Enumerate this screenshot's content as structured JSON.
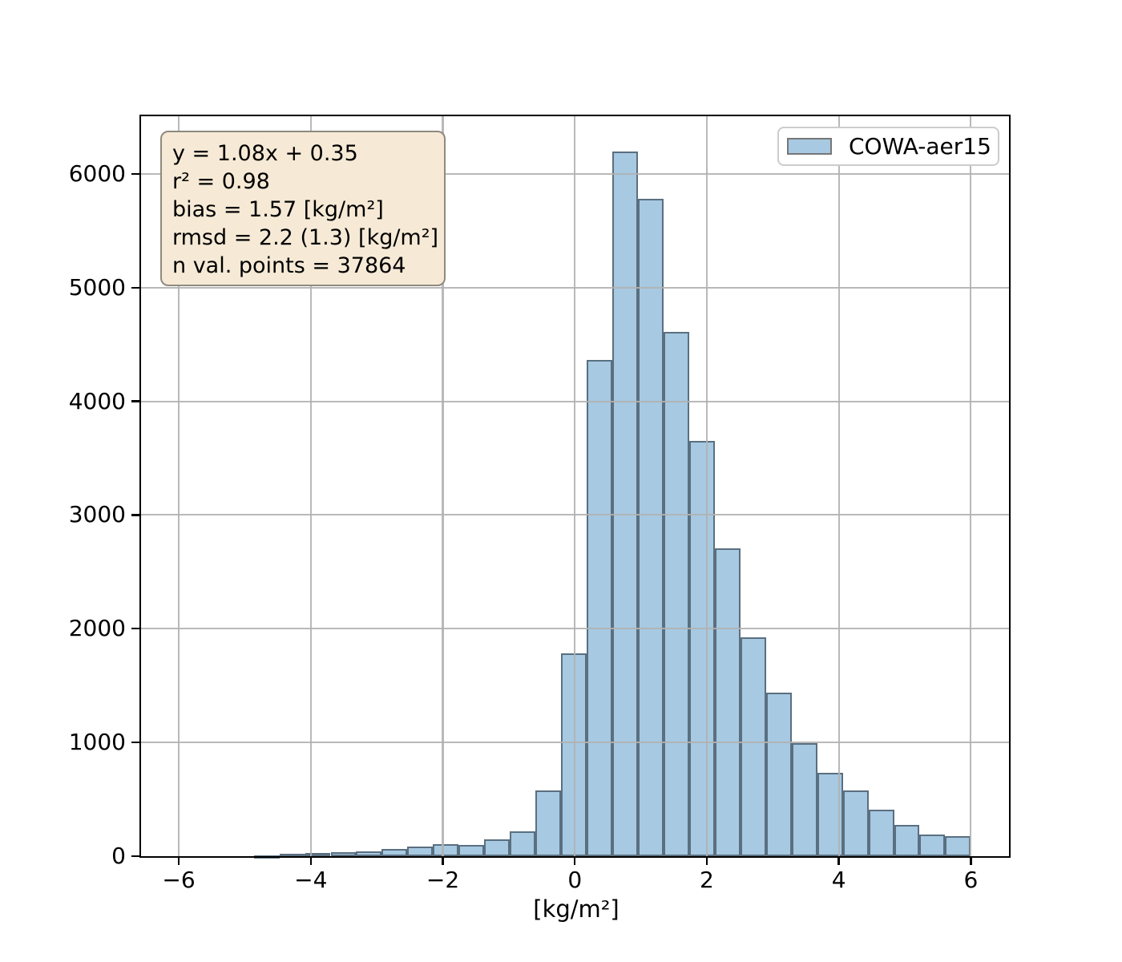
{
  "figure": {
    "background": "#ffffff"
  },
  "chart_data": {
    "type": "bar",
    "subtype": "histogram",
    "title": "",
    "xlabel": "[kg/m²]",
    "ylabel": "",
    "xlim": [
      -6.58,
      6.59
    ],
    "ylim": [
      0,
      6515
    ],
    "grid": true,
    "grid_color": "#b1b1b1",
    "axis_color": "#000000",
    "bar_fill": "#a7c9e2",
    "bar_edge": "rgba(38,52,64,0.60)",
    "xticks": {
      "values": [
        -6,
        -4,
        -2,
        0,
        2,
        4,
        6
      ],
      "labels": [
        "−6",
        "−4",
        "−2",
        "0",
        "2",
        "4",
        "6"
      ]
    },
    "yticks": {
      "values": [
        0,
        1000,
        2000,
        3000,
        4000,
        5000,
        6000
      ],
      "labels": [
        "0",
        "1000",
        "2000",
        "3000",
        "4000",
        "5000",
        "6000"
      ]
    },
    "bin_edges": [
      -4.864,
      -4.476,
      -4.088,
      -3.7,
      -3.312,
      -2.924,
      -2.536,
      -2.148,
      -1.76,
      -1.372,
      -0.984,
      -0.596,
      -0.208,
      0.18,
      0.568,
      0.956,
      1.344,
      1.732,
      2.12,
      2.508,
      2.896,
      3.284,
      3.672,
      4.06,
      4.448,
      4.836,
      5.224,
      5.612,
      6.0
    ],
    "counts": [
      6,
      20,
      28,
      35,
      42,
      60,
      80,
      105,
      100,
      148,
      215,
      575,
      1785,
      4365,
      6200,
      5780,
      4610,
      3650,
      2710,
      1925,
      1440,
      995,
      735,
      578,
      405,
      277,
      190,
      172
    ],
    "legend": {
      "label": "COWA-aer15",
      "position": "upper right",
      "swatch_fill": "#a7c9e2",
      "swatch_edge": "#777777"
    },
    "stats_box": {
      "background": "#f6ead6",
      "border": "#8f8a7f",
      "lines": [
        "y = 1.08x + 0.35",
        "r² = 0.98",
        "bias = 1.57 [kg/m²]",
        "rmsd = 2.2 (1.3) [kg/m²]",
        "n val. points = 37864"
      ]
    }
  }
}
